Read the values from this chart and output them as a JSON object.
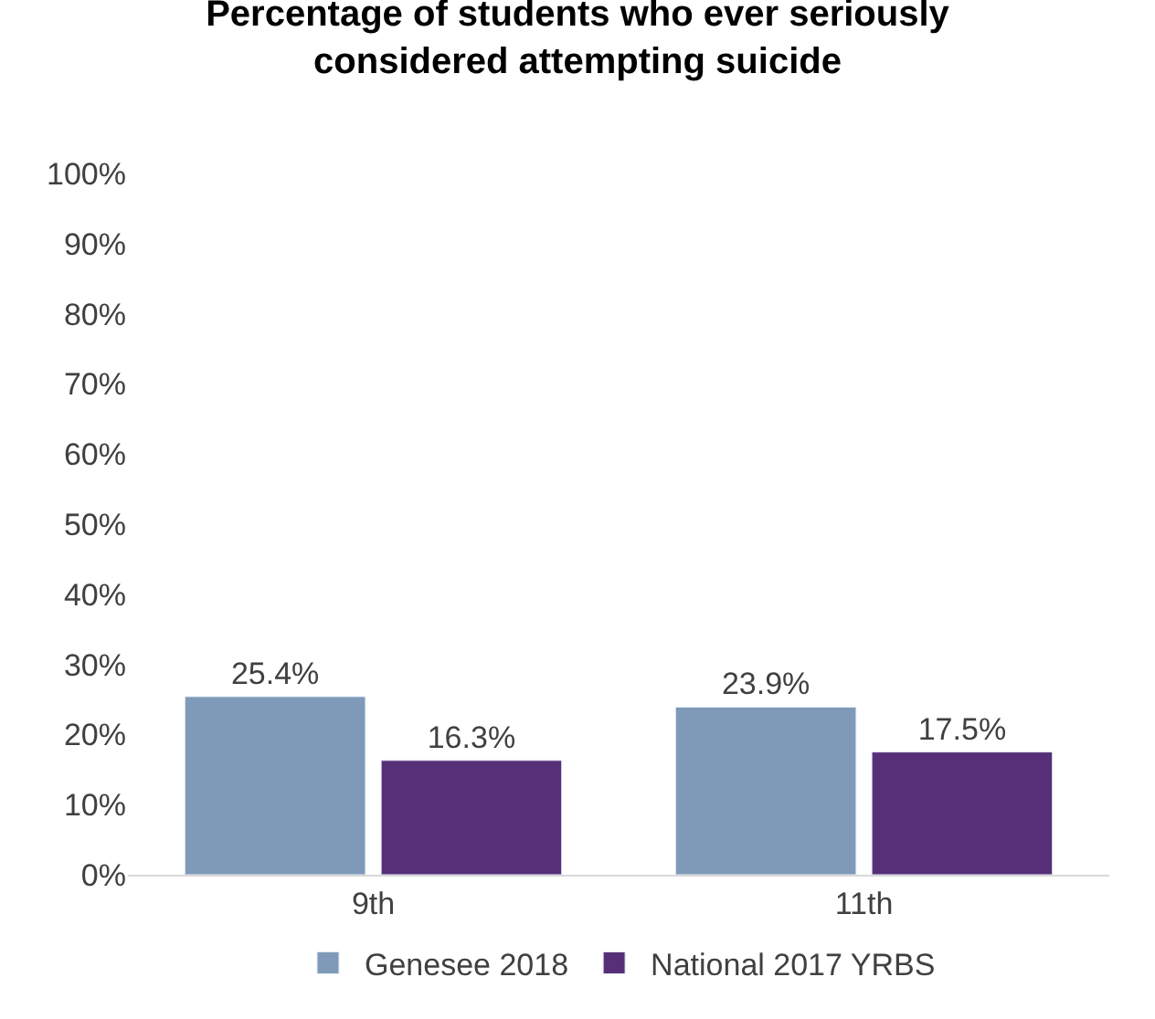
{
  "chart_data": {
    "type": "bar",
    "title": "Percentage of students who ever seriously\nconsidered attempting suicide",
    "categories": [
      "9th",
      "11th"
    ],
    "series": [
      {
        "name": "Genesee 2018",
        "color": "#7f9ab8",
        "values": [
          25.4,
          23.9
        ],
        "value_labels": [
          "25.4%",
          "23.9%"
        ]
      },
      {
        "name": "National 2017 YRBS",
        "color": "#562f78",
        "values": [
          16.3,
          17.5
        ],
        "value_labels": [
          "16.3%",
          "17.5%"
        ]
      }
    ],
    "ylim": [
      0,
      100
    ],
    "yticks": [
      {
        "value": 0,
        "label": "0%"
      },
      {
        "value": 10,
        "label": "10%"
      },
      {
        "value": 20,
        "label": "20%"
      },
      {
        "value": 30,
        "label": "30%"
      },
      {
        "value": 40,
        "label": "40%"
      },
      {
        "value": 50,
        "label": "50%"
      },
      {
        "value": 60,
        "label": "60%"
      },
      {
        "value": 70,
        "label": "70%"
      },
      {
        "value": 80,
        "label": "80%"
      },
      {
        "value": 90,
        "label": "90%"
      },
      {
        "value": 100,
        "label": "100%"
      }
    ],
    "grid": false,
    "legend": "bottom"
  }
}
